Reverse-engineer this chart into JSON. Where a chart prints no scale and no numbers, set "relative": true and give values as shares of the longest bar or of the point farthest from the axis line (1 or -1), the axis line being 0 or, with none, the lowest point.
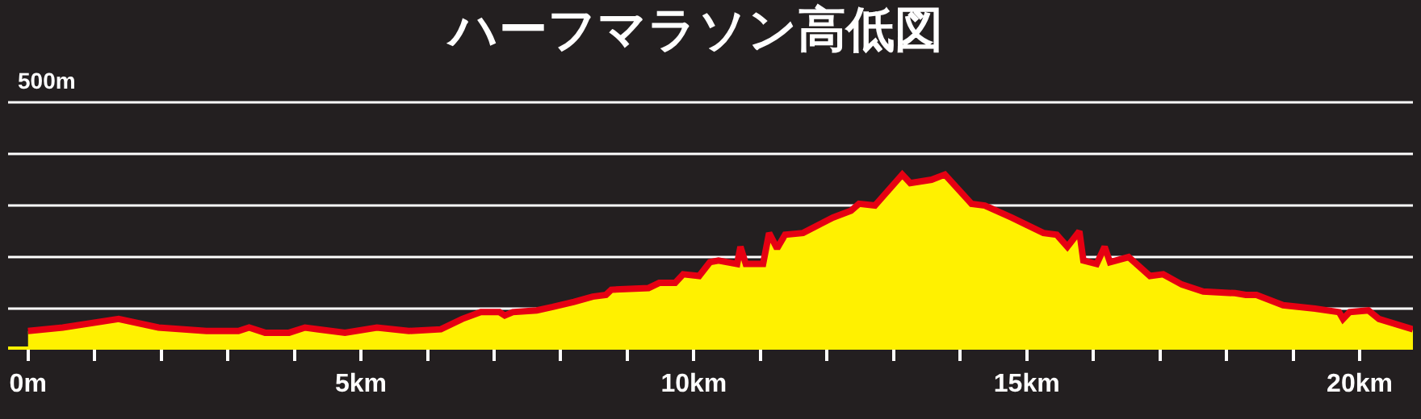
{
  "chart_data": {
    "type": "area",
    "title": "ハーフマラソン高低図",
    "relative": true,
    "marker": "none",
    "line_style": "solid",
    "xlim": [
      -0.3,
      20.8
    ],
    "xticks": [
      {
        "value": 0,
        "label": "0m"
      },
      {
        "value": 1,
        "label": null
      },
      {
        "value": 2,
        "label": null
      },
      {
        "value": 3,
        "label": null
      },
      {
        "value": 4,
        "label": null
      },
      {
        "value": 5,
        "label": "5km"
      },
      {
        "value": 6,
        "label": null
      },
      {
        "value": 7,
        "label": null
      },
      {
        "value": 8,
        "label": null
      },
      {
        "value": 9,
        "label": null
      },
      {
        "value": 10,
        "label": "10km"
      },
      {
        "value": 11,
        "label": null
      },
      {
        "value": 12,
        "label": null
      },
      {
        "value": 13,
        "label": null
      },
      {
        "value": 14,
        "label": null
      },
      {
        "value": 15,
        "label": "15km"
      },
      {
        "value": 16,
        "label": null
      },
      {
        "value": 17,
        "label": null
      },
      {
        "value": 18,
        "label": null
      },
      {
        "value": 19,
        "label": null
      },
      {
        "value": 20,
        "label": "20km"
      }
    ],
    "x": [
      0,
      0.52,
      1.36,
      1.96,
      2.68,
      3.16,
      3.32,
      3.56,
      3.92,
      4.16,
      4.36,
      4.76,
      5.24,
      5.72,
      6.2,
      6.52,
      6.8,
      7.08,
      7.16,
      7.28,
      7.64,
      7.88,
      8.2,
      8.48,
      8.68,
      8.76,
      9.32,
      9.48,
      9.72,
      9.84,
      10.08,
      10.24,
      10.37,
      10.65,
      10.7,
      10.78,
      11.04,
      11.13,
      11.25,
      11.37,
      11.64,
      12.09,
      12.36,
      12.48,
      12.72,
      13.13,
      13.25,
      13.57,
      13.77,
      14.17,
      14.37,
      14.77,
      15.25,
      15.45,
      15.61,
      15.79,
      15.85,
      16.05,
      16.17,
      16.25,
      16.53,
      16.85,
      17.05,
      17.33,
      17.65,
      18.13,
      18.29,
      18.45,
      18.85,
      19.33,
      19.69,
      19.75,
      19.85,
      20.13,
      20.29,
      20.8
    ],
    "series": [
      {
        "color": "#fff100",
        "values": [
          0.09,
          0.11,
          0.16,
          0.11,
          0.09,
          0.09,
          0.11,
          0.08,
          0.08,
          0.11,
          0.1,
          0.08,
          0.11,
          0.09,
          0.1,
          0.16,
          0.2,
          0.2,
          0.18,
          0.2,
          0.21,
          0.23,
          0.26,
          0.29,
          0.3,
          0.33,
          0.34,
          0.37,
          0.37,
          0.42,
          0.41,
          0.49,
          0.5,
          0.48,
          0.58,
          0.48,
          0.48,
          0.66,
          0.57,
          0.65,
          0.66,
          0.75,
          0.79,
          0.83,
          0.82,
          1,
          0.95,
          0.97,
          1,
          0.83,
          0.82,
          0.75,
          0.66,
          0.65,
          0.58,
          0.67,
          0.5,
          0.48,
          0.58,
          0.49,
          0.52,
          0.41,
          0.42,
          0.36,
          0.32,
          0.31,
          0.3,
          0.3,
          0.24,
          0.22,
          0.2,
          0.16,
          0.2,
          0.21,
          0.16,
          0.1
        ]
      }
    ],
    "ref_lines": [
      {
        "axis": "y",
        "value": 0.22,
        "color": "#ffffff"
      },
      {
        "axis": "y",
        "value": 0.52,
        "color": "#ffffff"
      },
      {
        "axis": "y",
        "value": 0.82,
        "color": "#ffffff"
      },
      {
        "axis": "y",
        "value": 1.12,
        "color": "#ffffff"
      },
      {
        "axis": "y",
        "value": 1.42,
        "label": "500m",
        "color": "#ffffff"
      }
    ]
  }
}
